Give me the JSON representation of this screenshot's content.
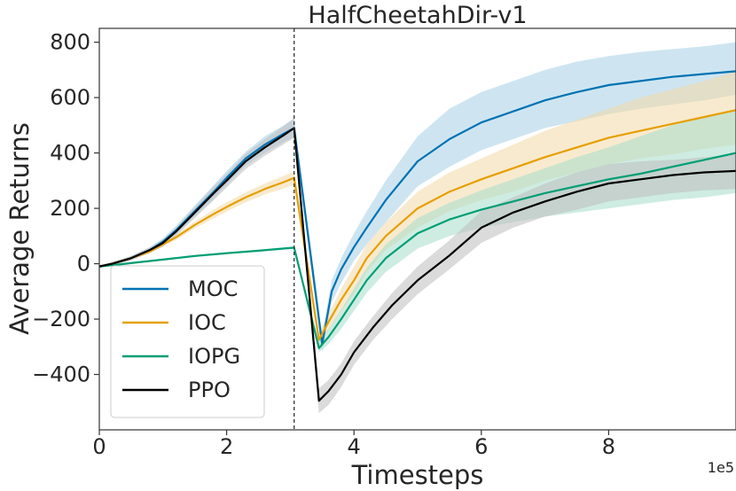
{
  "chart_data": {
    "type": "line",
    "title": "HalfCheetahDir-v1",
    "xlabel": "Timesteps",
    "ylabel": "Average Returns",
    "x_offset_label": "1e5",
    "xlim": [
      0,
      10
    ],
    "ylim": [
      -600,
      850
    ],
    "xticks": [
      0,
      2,
      4,
      6,
      8
    ],
    "yticks": [
      -400,
      -200,
      0,
      200,
      400,
      600,
      800
    ],
    "xtick_labels": [
      "0",
      "2",
      "4",
      "6",
      "8"
    ],
    "ytick_labels": [
      "−400",
      "−200",
      "0",
      "200",
      "400",
      "600",
      "800"
    ],
    "vline_x": 3.06,
    "legend_position": "lower-left",
    "series": [
      {
        "name": "MOC",
        "color": "#0072b2",
        "band_color": "#a6cfe6",
        "x": [
          0,
          0.2,
          0.5,
          0.8,
          1.0,
          1.2,
          1.5,
          1.8,
          2.0,
          2.3,
          2.6,
          2.9,
          3.06,
          3.5,
          3.65,
          3.8,
          4.0,
          4.2,
          4.5,
          5.0,
          5.5,
          6.0,
          6.5,
          7.0,
          7.5,
          8.0,
          8.5,
          9.0,
          9.5,
          10.0
        ],
        "y": [
          -10,
          0,
          20,
          50,
          80,
          120,
          190,
          260,
          310,
          380,
          430,
          470,
          490,
          -290,
          -100,
          -20,
          60,
          130,
          230,
          370,
          450,
          510,
          550,
          590,
          620,
          645,
          660,
          675,
          685,
          695
        ],
        "upper": [
          -5,
          5,
          28,
          60,
          92,
          136,
          210,
          285,
          335,
          405,
          460,
          500,
          525,
          -250,
          -60,
          20,
          110,
          190,
          300,
          460,
          560,
          620,
          660,
          700,
          730,
          750,
          765,
          775,
          785,
          800
        ],
        "lower": [
          -15,
          -5,
          12,
          40,
          68,
          104,
          170,
          235,
          285,
          355,
          400,
          440,
          455,
          -320,
          -140,
          -70,
          10,
          70,
          150,
          280,
          350,
          410,
          450,
          490,
          515,
          540,
          560,
          575,
          590,
          610
        ]
      },
      {
        "name": "IOC",
        "color": "#e69f00",
        "band_color": "#f3d9a6",
        "x": [
          0,
          0.2,
          0.5,
          0.8,
          1.0,
          1.2,
          1.5,
          1.8,
          2.0,
          2.3,
          2.6,
          2.9,
          3.06,
          3.45,
          3.6,
          3.8,
          4.0,
          4.2,
          4.5,
          5.0,
          5.5,
          6.0,
          6.5,
          7.0,
          7.5,
          8.0,
          8.5,
          9.0,
          9.5,
          10.0
        ],
        "y": [
          -10,
          0,
          20,
          45,
          70,
          95,
          140,
          180,
          205,
          240,
          270,
          295,
          310,
          -275,
          -210,
          -130,
          -60,
          20,
          100,
          200,
          260,
          305,
          345,
          385,
          420,
          455,
          480,
          505,
          530,
          555
        ],
        "upper": [
          -5,
          5,
          26,
          52,
          78,
          105,
          152,
          196,
          222,
          258,
          290,
          318,
          335,
          -250,
          -180,
          -90,
          -10,
          70,
          150,
          260,
          330,
          380,
          430,
          480,
          520,
          560,
          600,
          630,
          660,
          695
        ],
        "lower": [
          -15,
          -5,
          14,
          38,
          62,
          85,
          128,
          164,
          188,
          222,
          250,
          272,
          285,
          -300,
          -240,
          -170,
          -110,
          -30,
          50,
          130,
          190,
          230,
          260,
          300,
          330,
          360,
          380,
          395,
          415,
          430
        ]
      },
      {
        "name": "IOPG",
        "color": "#009e73",
        "band_color": "#a6dccb",
        "x": [
          0,
          0.3,
          0.6,
          1.0,
          1.5,
          2.0,
          2.5,
          3.06,
          3.45,
          3.6,
          3.8,
          4.0,
          4.2,
          4.5,
          5.0,
          5.5,
          6.0,
          6.5,
          7.0,
          7.5,
          8.0,
          8.5,
          9.0,
          9.5,
          10.0
        ],
        "y": [
          -10,
          -3,
          5,
          15,
          28,
          38,
          47,
          58,
          -305,
          -265,
          -200,
          -130,
          -60,
          20,
          110,
          160,
          195,
          225,
          255,
          280,
          305,
          325,
          350,
          375,
          400
        ],
        "upper": [
          -6,
          1,
          9,
          19,
          32,
          42,
          51,
          62,
          -280,
          -235,
          -165,
          -90,
          -15,
          70,
          165,
          220,
          265,
          305,
          345,
          385,
          420,
          460,
          500,
          530,
          555
        ],
        "lower": [
          -14,
          -7,
          1,
          11,
          24,
          34,
          43,
          54,
          -320,
          -290,
          -235,
          -170,
          -105,
          -30,
          55,
          100,
          130,
          150,
          170,
          185,
          200,
          215,
          230,
          240,
          255
        ]
      },
      {
        "name": "PPO",
        "color": "#000000",
        "band_color": "#bdbdbd",
        "x": [
          0,
          0.2,
          0.5,
          0.8,
          1.0,
          1.2,
          1.5,
          1.8,
          2.0,
          2.3,
          2.6,
          2.9,
          3.06,
          3.45,
          3.6,
          3.8,
          4.0,
          4.3,
          4.6,
          5.0,
          5.5,
          6.0,
          6.5,
          7.0,
          7.5,
          8.0,
          8.5,
          9.0,
          9.5,
          10.0
        ],
        "y": [
          -10,
          0,
          20,
          50,
          75,
          115,
          185,
          255,
          300,
          370,
          420,
          465,
          490,
          -495,
          -460,
          -400,
          -320,
          -230,
          -150,
          -60,
          30,
          130,
          185,
          225,
          260,
          290,
          305,
          320,
          330,
          335
        ],
        "upper": [
          -5,
          5,
          28,
          60,
          88,
          130,
          205,
          280,
          325,
          398,
          450,
          498,
          525,
          -450,
          -420,
          -360,
          -280,
          -190,
          -105,
          -10,
          85,
          190,
          240,
          290,
          330,
          360,
          370,
          375,
          385,
          395
        ],
        "lower": [
          -15,
          -5,
          12,
          40,
          62,
          100,
          165,
          230,
          275,
          342,
          390,
          432,
          455,
          -540,
          -510,
          -445,
          -365,
          -275,
          -200,
          -110,
          -20,
          75,
          130,
          170,
          195,
          225,
          240,
          255,
          265,
          270
        ]
      }
    ]
  }
}
